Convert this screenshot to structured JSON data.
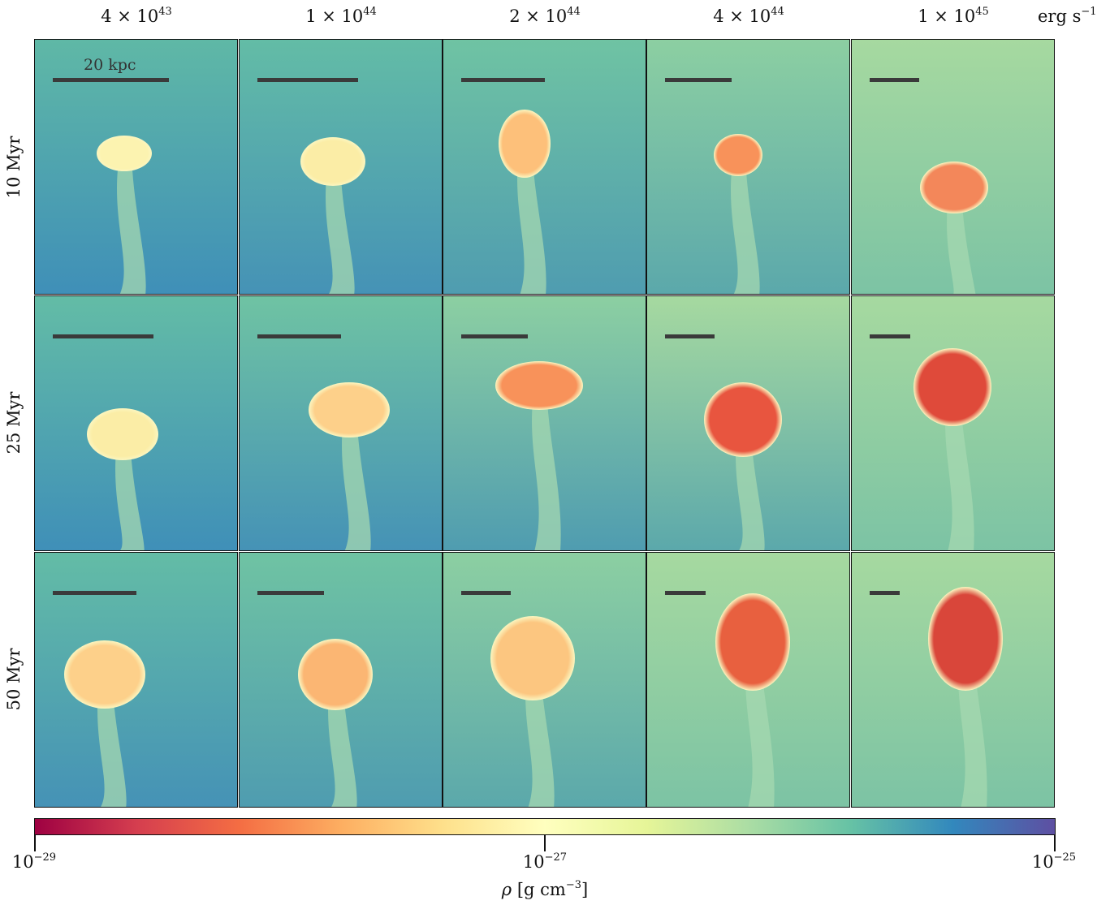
{
  "columns": [
    {
      "mantissa": "4 × 10",
      "exp": "43"
    },
    {
      "mantissa": "1 × 10",
      "exp": "44"
    },
    {
      "mantissa": "2 × 10",
      "exp": "44"
    },
    {
      "mantissa": "4 × 10",
      "exp": "44"
    },
    {
      "mantissa": "1 × 10",
      "exp": "45"
    }
  ],
  "unit": {
    "base": "erg s",
    "exp": "−1"
  },
  "rows": [
    "10 Myr",
    "25 Myr",
    "50 Myr"
  ],
  "scalebar_label": "20 kpc",
  "scalebar_fractions": [
    [
      1.0,
      0.87,
      0.72,
      0.57,
      0.43
    ],
    [
      0.87,
      0.72,
      0.57,
      0.43,
      0.35
    ],
    [
      0.72,
      0.57,
      0.43,
      0.35,
      0.26
    ]
  ],
  "colorbar": {
    "ticks": [
      {
        "base": "10",
        "exp": "−29"
      },
      {
        "base": "10",
        "exp": "−27"
      },
      {
        "base": "10",
        "exp": "−25"
      }
    ],
    "label_symbol": "ρ",
    "label_unit": "[g cm",
    "label_exp": "−3",
    "label_close": "]",
    "colormap": "Spectral",
    "colors": [
      "#9e0142",
      "#d53e4f",
      "#f46d43",
      "#fdae61",
      "#fee08b",
      "#ffffbf",
      "#e6f598",
      "#abdda4",
      "#66c2a5",
      "#3288bd",
      "#5e4fa2"
    ]
  }
}
